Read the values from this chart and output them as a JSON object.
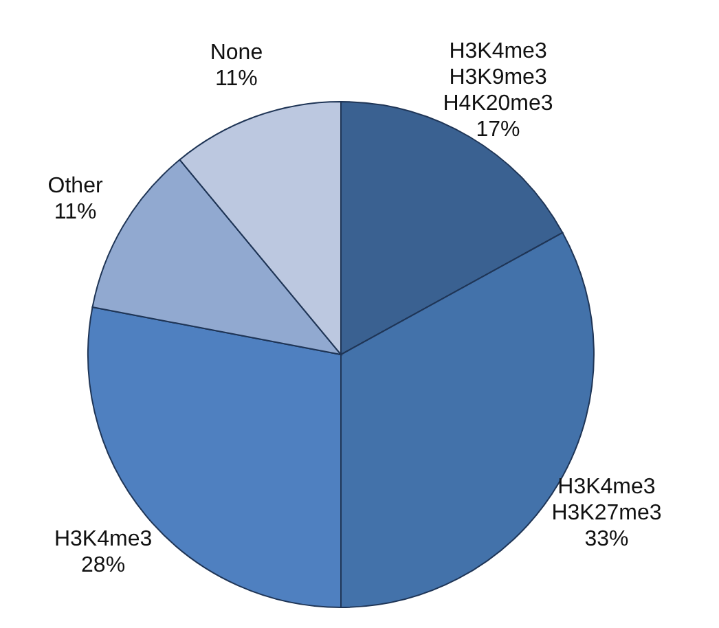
{
  "chart_data": {
    "type": "pie",
    "categories": [
      "H3K4me3\nH3K9me3\nH4K20me3",
      "H3K4me3\nH3K27me3",
      "H3K4me3",
      "Other",
      "None"
    ],
    "values": [
      17,
      33,
      28,
      11,
      11
    ],
    "value_labels": [
      "17%",
      "33%",
      "28%",
      "11%",
      "11%"
    ],
    "colors": [
      "#3a6191",
      "#4372aa",
      "#4f80c0",
      "#91a9d0",
      "#bcc8e0"
    ]
  }
}
